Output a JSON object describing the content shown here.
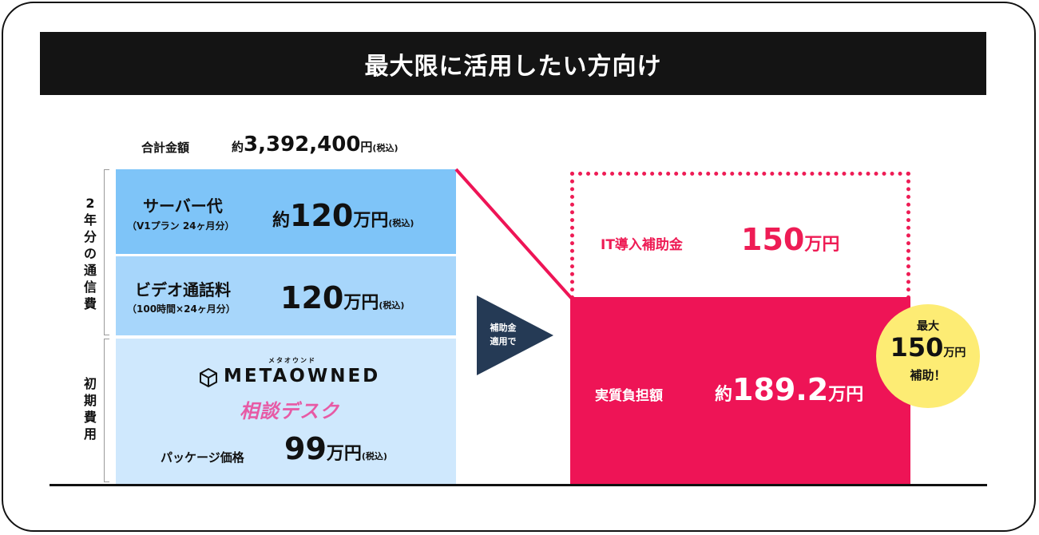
{
  "header": {
    "title": "最大限に活用したい方向け"
  },
  "total": {
    "label": "合計金額",
    "prefix": "約",
    "amount": "3,392,400",
    "unit": "円",
    "tax": "(税込)"
  },
  "group_labels": {
    "communication": "2年分の通信費",
    "initial": "初期費用"
  },
  "items": [
    {
      "title": "サーバー代",
      "sub": "（V1プラン 24ヶ月分）",
      "prefix": "約",
      "amount": "120",
      "unit": "万円",
      "tax": "(税込)"
    },
    {
      "title": "ビデオ通話料",
      "sub": "（100時間×24ヶ月分）",
      "prefix": "",
      "amount": "120",
      "unit": "万円",
      "tax": "(税込)"
    }
  ],
  "package": {
    "logo_ruby": "メタオウンド",
    "logo_text": "METAOWNED",
    "logo_sub": "相談デスク",
    "label": "パッケージ価格",
    "amount": "99",
    "unit": "万円",
    "tax": "(税込)"
  },
  "arrow": {
    "line1": "補助金",
    "line2": "適用で"
  },
  "subsidy": {
    "label": "IT導入補助金",
    "amount": "150",
    "unit": "万円"
  },
  "actual": {
    "label": "実質負担額",
    "prefix": "約",
    "amount": "189.2",
    "unit": "万円"
  },
  "badge": {
    "line1": "最大",
    "amount": "150",
    "unit": "万円",
    "line3": "補助！"
  },
  "colors": {
    "accent": "#ee1456",
    "header_bg": "#141414",
    "blue1": "#7ec4f8",
    "blue2": "#a7d6fb",
    "blue3": "#cfe8fd",
    "badge": "#fdec74",
    "arrow": "#253a55"
  }
}
